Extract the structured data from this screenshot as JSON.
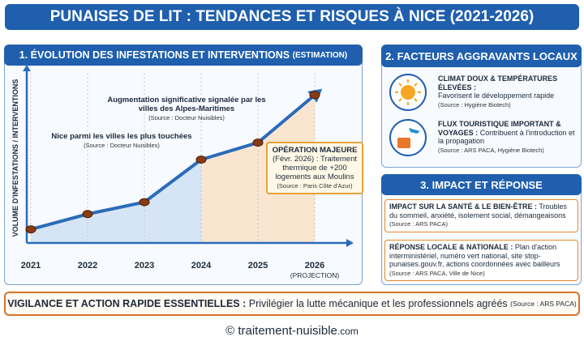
{
  "header": {
    "title": "PUNAISES DE LIT : TENDANCES ET RISQUES À NICE (2021-2026)"
  },
  "chart_data": {
    "type": "line",
    "title": "1. ÉVOLUTION DES INFESTATIONS ET INTERVENTIONS",
    "title_note": "(ESTIMATION)",
    "y_label": "VOLUME D'INFESTATIONS / INTERVENTIONS",
    "categories": [
      "2021",
      "2022",
      "2023",
      "2024",
      "2025",
      "2026"
    ],
    "category_note": "(PROJECTION)",
    "values": [
      8,
      17,
      24,
      49,
      59,
      87
    ],
    "ylim": [
      0,
      100
    ],
    "color": "#2b6cb8",
    "annotations": [
      {
        "text": "Augmentation significative signalée par les villes des Alpes-Maritimes",
        "source": "(Source : Docteur Nuisibles)"
      },
      {
        "text": "Nice parmi les villes les plus touchées",
        "source": "(Source : Docteur Nuisibles)"
      }
    ],
    "callout": {
      "title": "OPÉRATION MAJEURE",
      "text": "(Févr. 2026) : Traitement thermique de +200 logements aux Moulins",
      "source": "(Source : Paris Côte d'Azur)"
    }
  },
  "factors": {
    "title": "2. FACTEURS AGGRAVANTS LOCAUX",
    "items": [
      {
        "title": "CLIMAT DOUX & TEMPÉRATURES ÉLEVÉES :",
        "text": "Favorisent le développement rapide",
        "source": "(Source : Hygiène Biotech)"
      },
      {
        "title": "FLUX TOURISTIQUE IMPORTANT & VOYAGES :",
        "text": "Contribuent à l'introduction et la propagation",
        "source": "(Source : ARS PACA, Hygiène Biotech)"
      }
    ]
  },
  "impact": {
    "title": "3. IMPACT ET RÉPONSE",
    "items": [
      {
        "title": "IMPACT SUR LA SANTÉ & LE BIEN-ÊTRE :",
        "text": "Troubles du sommeil, anxiété, isolement social, démangeaisons",
        "source": "(Source : ARS PACA)"
      },
      {
        "title": "RÉPONSE LOCALE & NATIONALE :",
        "text": "Plan d'action interministériel, numéro vert national, site stop-punaises.gouv.fr, actions coordonnées avec bailleurs",
        "source": "(Source : ARS PACA, Ville de Nice)"
      }
    ]
  },
  "banner": {
    "title": "VIGILANCE ET ACTION RAPIDE ESSENTIELLES :",
    "text": "Privilégier la lutte mécanique et les professionnels agréés",
    "source": "(Source : ARS PACA)"
  },
  "footer": {
    "copyright": "©",
    "site": "traitement-nuisible",
    "tld": ".com"
  }
}
